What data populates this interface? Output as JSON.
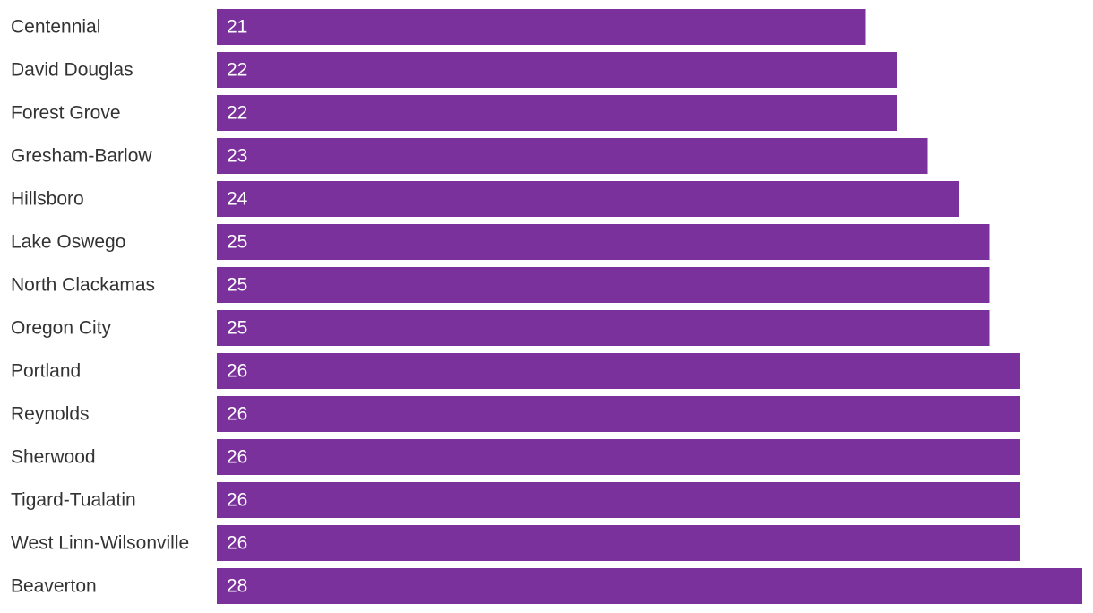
{
  "chart_data": {
    "type": "bar",
    "orientation": "horizontal",
    "color": "#7b319c",
    "categories": [
      "Centennial",
      "David Douglas",
      "Forest Grove",
      "Gresham-Barlow",
      "Hillsboro",
      "Lake Oswego",
      "North Clackamas",
      "Oregon City",
      "Portland",
      "Reynolds",
      "Sherwood",
      "Tigard-Tualatin",
      "West Linn-Wilsonville",
      "Beaverton"
    ],
    "values": [
      21,
      22,
      22,
      23,
      24,
      25,
      25,
      25,
      26,
      26,
      26,
      26,
      26,
      28
    ]
  }
}
